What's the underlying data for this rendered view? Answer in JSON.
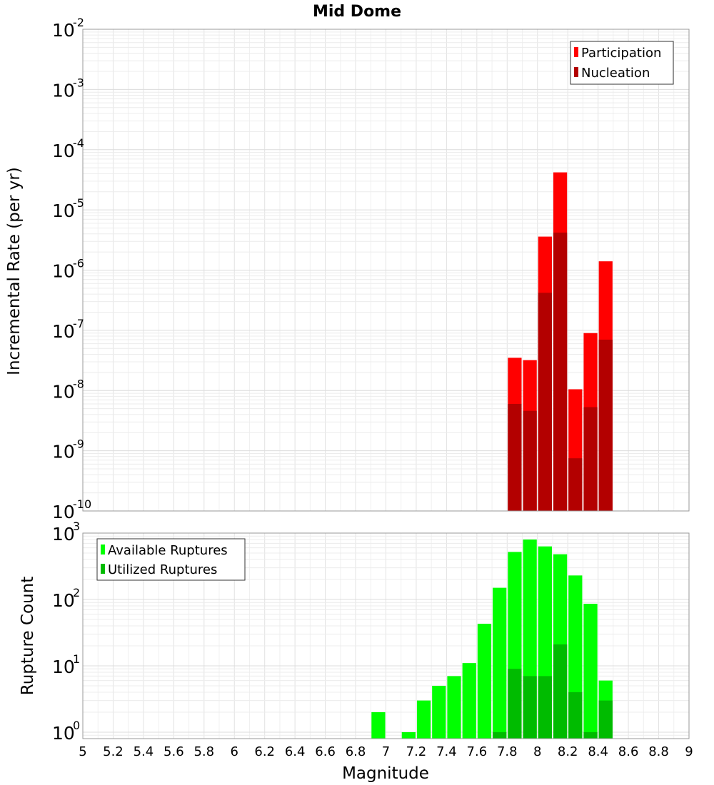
{
  "chart_data": [
    {
      "type": "bar",
      "title": "Mid Dome",
      "ylabel": "Incremental Rate (per yr)",
      "xlabel": "",
      "yscale": "log",
      "ylim": [
        1e-10,
        0.01
      ],
      "xlim": [
        5,
        9
      ],
      "ytick_labels": [
        {
          "base": "10",
          "exp": "-10"
        },
        {
          "base": "10",
          "exp": "-9"
        },
        {
          "base": "10",
          "exp": "-8"
        },
        {
          "base": "10",
          "exp": "-7"
        },
        {
          "base": "10",
          "exp": "-6"
        },
        {
          "base": "10",
          "exp": "-5"
        },
        {
          "base": "10",
          "exp": "-4"
        },
        {
          "base": "10",
          "exp": "-3"
        },
        {
          "base": "10",
          "exp": "-2"
        }
      ],
      "grid": true,
      "legend_position": "top-right",
      "x": [
        7.85,
        7.95,
        8.05,
        8.15,
        8.25,
        8.35,
        8.45
      ],
      "series": [
        {
          "name": "Participation",
          "color": "#ff0000",
          "values": [
            3.5e-08,
            3.2e-08,
            3.6e-06,
            4.2e-05,
            1.05e-08,
            9e-08,
            1.4e-06
          ]
        },
        {
          "name": "Nucleation",
          "color": "#b30000",
          "values": [
            6e-09,
            4.6e-09,
            4.2e-07,
            4.2e-06,
            7.5e-10,
            5.3e-09,
            7e-08
          ]
        }
      ]
    },
    {
      "type": "bar",
      "title": "",
      "ylabel": "Rupture Count",
      "xlabel": "Magnitude",
      "yscale": "log",
      "ylim": [
        0.8,
        1000
      ],
      "xlim": [
        5,
        9
      ],
      "ytick_labels": [
        {
          "base": "10",
          "exp": "0"
        },
        {
          "base": "10",
          "exp": "1"
        },
        {
          "base": "10",
          "exp": "2"
        },
        {
          "base": "10",
          "exp": "3"
        }
      ],
      "xtick_labels": [
        "5",
        "5.2",
        "5.4",
        "5.6",
        "5.8",
        "6",
        "6.2",
        "6.4",
        "6.6",
        "6.8",
        "7",
        "7.2",
        "7.4",
        "7.6",
        "7.8",
        "8",
        "8.2",
        "8.4",
        "8.6",
        "8.8",
        "9"
      ],
      "grid": true,
      "legend_position": "top-left",
      "x": [
        6.95,
        7.15,
        7.25,
        7.35,
        7.45,
        7.55,
        7.65,
        7.75,
        7.85,
        7.95,
        8.05,
        8.15,
        8.25,
        8.35,
        8.45
      ],
      "series": [
        {
          "name": "Available Ruptures",
          "color": "#00ff00",
          "values": [
            2,
            1,
            3,
            5,
            7,
            11,
            43,
            150,
            520,
            800,
            630,
            480,
            230,
            86,
            6
          ]
        },
        {
          "name": "Utilized Ruptures",
          "color": "#00bb00",
          "values": [
            0,
            0,
            0,
            0,
            0,
            0,
            0,
            1,
            9,
            7,
            7,
            21,
            4,
            1,
            3
          ]
        }
      ]
    }
  ]
}
